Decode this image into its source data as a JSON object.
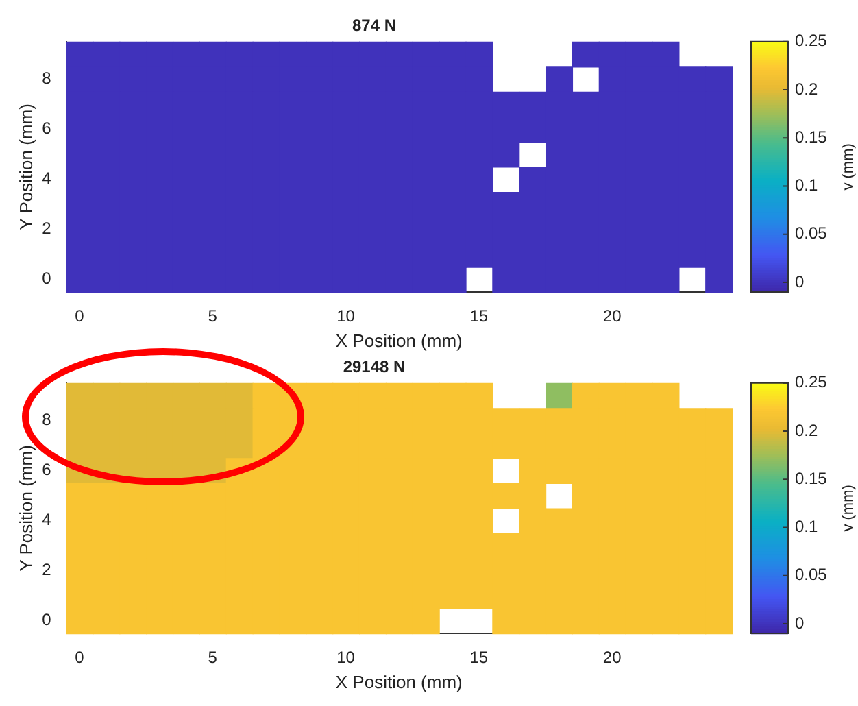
{
  "chart_data": [
    {
      "type": "heatmap",
      "title": "874 N",
      "xlabel": "X Position (mm)",
      "ylabel": "Y Position (mm)",
      "clabel": "v (mm)",
      "categories": [
        "0",
        null,
        null,
        null,
        null,
        "5",
        null,
        null,
        null,
        null,
        "10",
        null,
        null,
        null,
        null,
        "15",
        null,
        null,
        null,
        null,
        "20",
        null,
        null,
        null,
        null
      ],
      "y_categories": [
        null,
        "8",
        null,
        "6",
        null,
        "4",
        null,
        "2",
        null,
        "0"
      ],
      "cells": [
        [
          0,
          0,
          0,
          0,
          0,
          0,
          0,
          0,
          0,
          0,
          0,
          0,
          0,
          0,
          0,
          0,
          null,
          null,
          null,
          0,
          0,
          0,
          0,
          null,
          null
        ],
        [
          0,
          0,
          0,
          0,
          0,
          0,
          0,
          0,
          0,
          0,
          0,
          0,
          0,
          0,
          0,
          0,
          null,
          null,
          0,
          null,
          0,
          0,
          0,
          0,
          0
        ],
        [
          0,
          0,
          0,
          0,
          0,
          0,
          0,
          0,
          0,
          0,
          0,
          0,
          0,
          0,
          0,
          0,
          0,
          0,
          0,
          0,
          0,
          0,
          0,
          0,
          0
        ],
        [
          0,
          0,
          0,
          0,
          0,
          0,
          0,
          0,
          0,
          0,
          0,
          0,
          0,
          0,
          0,
          0,
          0,
          0,
          0,
          0,
          0,
          0,
          0,
          0,
          0
        ],
        [
          0,
          0,
          0,
          0,
          0,
          0,
          0,
          0,
          0,
          0,
          0,
          0,
          0,
          0,
          0,
          0,
          0,
          null,
          0,
          0,
          0,
          0,
          0,
          0,
          0
        ],
        [
          0,
          0,
          0,
          0,
          0,
          0,
          0,
          0,
          0,
          0,
          0,
          0,
          0,
          0,
          0,
          0,
          null,
          0,
          0,
          0,
          0,
          0,
          0,
          0,
          0
        ],
        [
          0,
          0,
          0,
          0,
          0,
          0,
          0,
          0,
          0,
          0,
          0,
          0,
          0,
          0,
          0,
          0,
          0,
          0,
          0,
          0,
          0,
          0,
          0,
          0,
          0
        ],
        [
          0,
          0,
          0,
          0,
          0,
          0,
          0,
          0,
          0,
          0,
          0,
          0,
          0,
          0,
          0,
          0,
          0,
          0,
          0,
          0,
          0,
          0,
          0,
          0,
          0
        ],
        [
          0,
          0,
          0,
          0,
          0,
          0,
          0,
          0,
          0,
          0,
          0,
          0,
          0,
          0,
          0,
          0,
          0,
          0,
          0,
          0,
          0,
          0,
          0,
          0,
          0
        ],
        [
          0,
          0,
          0,
          0,
          0,
          0,
          0,
          0,
          0,
          0,
          0,
          0,
          0,
          0,
          0,
          null,
          0,
          0,
          0,
          0,
          0,
          0,
          0,
          null,
          0
        ]
      ],
      "clim": [
        -0.01,
        0.25
      ],
      "cticks": [
        0,
        0.05,
        0.1,
        0.15,
        0.2,
        0.25
      ]
    },
    {
      "type": "heatmap",
      "title": "29148 N",
      "xlabel": "X Position (mm)",
      "ylabel": "Y Position (mm)",
      "clabel": "v (mm)",
      "categories": [
        "0",
        null,
        null,
        null,
        null,
        "5",
        null,
        null,
        null,
        null,
        "10",
        null,
        null,
        null,
        null,
        "15",
        null,
        null,
        null,
        null,
        "20",
        null,
        null,
        null,
        null
      ],
      "y_categories": [
        null,
        "8",
        null,
        "6",
        null,
        "4",
        null,
        "2",
        null,
        "0"
      ],
      "cells": [
        [
          0.2,
          0.2,
          0.2,
          0.2,
          0.2,
          0.2,
          0.2,
          0.22,
          0.22,
          0.22,
          0.22,
          0.22,
          0.22,
          0.22,
          0.22,
          0.22,
          null,
          null,
          0.17,
          0.22,
          0.22,
          0.22,
          0.22,
          null,
          null
        ],
        [
          0.2,
          0.2,
          0.2,
          0.2,
          0.2,
          0.2,
          0.2,
          0.22,
          0.22,
          0.22,
          0.22,
          0.22,
          0.22,
          0.22,
          0.22,
          0.22,
          0.22,
          0.22,
          0.22,
          0.22,
          0.22,
          0.22,
          0.22,
          0.22,
          0.22
        ],
        [
          0.2,
          0.2,
          0.2,
          0.2,
          0.2,
          0.2,
          0.2,
          0.22,
          0.22,
          0.22,
          0.22,
          0.22,
          0.22,
          0.22,
          0.22,
          0.22,
          0.22,
          0.22,
          0.22,
          0.22,
          0.22,
          0.22,
          0.22,
          0.22,
          0.22
        ],
        [
          0.2,
          0.2,
          0.2,
          0.2,
          0.2,
          0.2,
          0.22,
          0.22,
          0.22,
          0.22,
          0.22,
          0.22,
          0.22,
          0.22,
          0.22,
          0.22,
          null,
          0.22,
          0.22,
          0.22,
          0.22,
          0.22,
          0.22,
          0.22,
          0.22
        ],
        [
          0.22,
          0.22,
          0.22,
          0.22,
          0.22,
          0.22,
          0.22,
          0.22,
          0.22,
          0.22,
          0.22,
          0.22,
          0.22,
          0.22,
          0.22,
          0.22,
          0.22,
          0.22,
          null,
          0.22,
          0.22,
          0.22,
          0.22,
          0.22,
          0.22
        ],
        [
          0.22,
          0.22,
          0.22,
          0.22,
          0.22,
          0.22,
          0.22,
          0.22,
          0.22,
          0.22,
          0.22,
          0.22,
          0.22,
          0.22,
          0.22,
          0.22,
          null,
          0.22,
          0.22,
          0.22,
          0.22,
          0.22,
          0.22,
          0.22,
          0.22
        ],
        [
          0.22,
          0.22,
          0.22,
          0.22,
          0.22,
          0.22,
          0.22,
          0.22,
          0.22,
          0.22,
          0.22,
          0.22,
          0.22,
          0.22,
          0.22,
          0.22,
          0.22,
          0.22,
          0.22,
          0.22,
          0.22,
          0.22,
          0.22,
          0.22,
          0.22
        ],
        [
          0.22,
          0.22,
          0.22,
          0.22,
          0.22,
          0.22,
          0.22,
          0.22,
          0.22,
          0.22,
          0.22,
          0.22,
          0.22,
          0.22,
          0.22,
          0.22,
          0.22,
          0.22,
          0.22,
          0.22,
          0.22,
          0.22,
          0.22,
          0.22,
          0.22
        ],
        [
          0.22,
          0.22,
          0.22,
          0.22,
          0.22,
          0.22,
          0.22,
          0.22,
          0.22,
          0.22,
          0.22,
          0.22,
          0.22,
          0.22,
          0.22,
          0.22,
          0.22,
          0.22,
          0.22,
          0.22,
          0.22,
          0.22,
          0.22,
          0.22,
          0.22
        ],
        [
          0.22,
          0.22,
          0.22,
          0.22,
          0.22,
          0.22,
          0.22,
          0.22,
          0.22,
          0.22,
          0.22,
          0.22,
          0.22,
          0.22,
          null,
          null,
          0.22,
          0.22,
          0.22,
          0.22,
          0.22,
          0.22,
          0.22,
          0.22,
          0.22
        ]
      ],
      "clim": [
        -0.01,
        0.25
      ],
      "cticks": [
        0,
        0.05,
        0.1,
        0.15,
        0.2,
        0.25
      ]
    }
  ]
}
